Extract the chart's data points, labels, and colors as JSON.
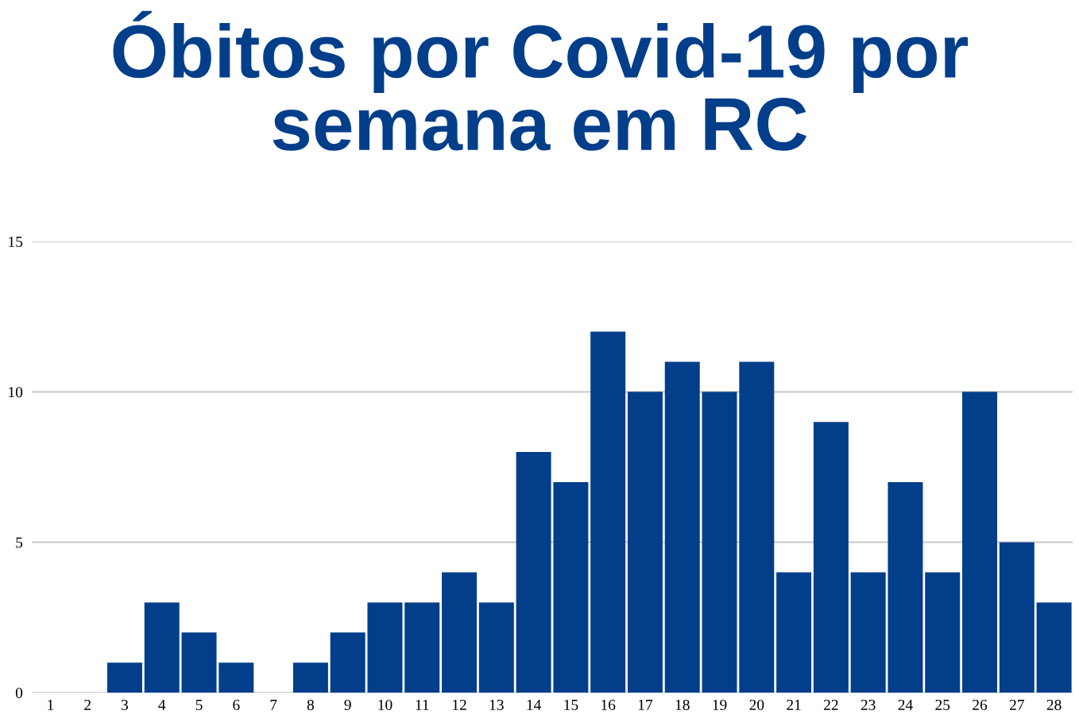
{
  "chart_data": {
    "type": "bar",
    "title": "Óbitos por Covid-19 por semana em RC",
    "categories": [
      "1",
      "2",
      "3",
      "4",
      "5",
      "6",
      "7",
      "8",
      "9",
      "10",
      "11",
      "12",
      "13",
      "14",
      "15",
      "16",
      "17",
      "18",
      "19",
      "20",
      "21",
      "22",
      "23",
      "24",
      "25",
      "26",
      "27",
      "28"
    ],
    "values": [
      0,
      0,
      1,
      3,
      2,
      1,
      0,
      1,
      2,
      3,
      3,
      4,
      3,
      8,
      7,
      12,
      10,
      11,
      10,
      11,
      4,
      9,
      4,
      7,
      4,
      10,
      5,
      3
    ],
    "color": "#023e8a",
    "ylim": [
      0,
      15
    ],
    "yticks": [
      0,
      5,
      10,
      15
    ],
    "grid": "y",
    "legend": false
  }
}
